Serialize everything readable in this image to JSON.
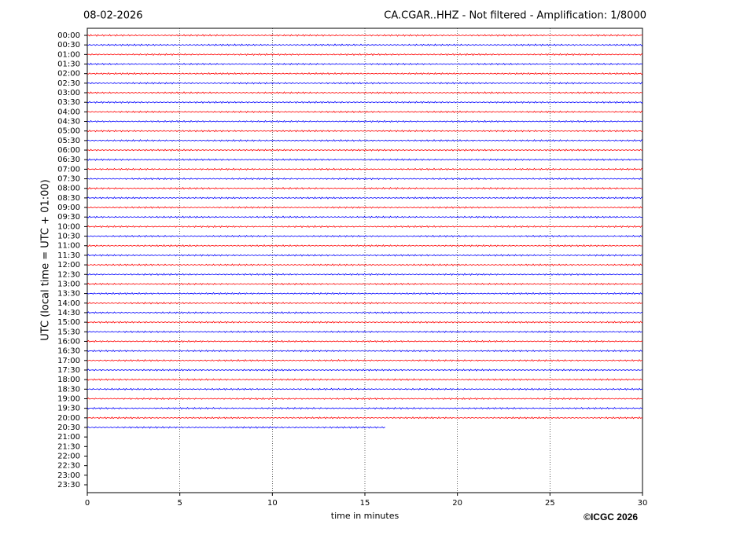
{
  "chart_data": {
    "type": "helicorder",
    "date": "08-02-2026",
    "title": "CA.CGAR..HHZ - Not filtered - Amplification: 1/8000",
    "ylabel": "UTC (local time = UTC + 01:00)",
    "xlabel": "time in minutes",
    "copyright": "©ICGC 2026",
    "xlim": [
      0,
      30
    ],
    "xticks": [
      0,
      5,
      10,
      15,
      20,
      25,
      30
    ],
    "grid": true,
    "colors": [
      "#ff0000",
      "#0000ff"
    ],
    "categories": [
      "00:00",
      "00:30",
      "01:00",
      "01:30",
      "02:00",
      "02:30",
      "03:00",
      "03:30",
      "04:00",
      "04:30",
      "05:00",
      "05:30",
      "06:00",
      "06:30",
      "07:00",
      "07:30",
      "08:00",
      "08:30",
      "09:00",
      "09:30",
      "10:00",
      "10:30",
      "11:00",
      "11:30",
      "12:00",
      "12:30",
      "13:00",
      "13:30",
      "14:00",
      "14:30",
      "15:00",
      "15:30",
      "16:00",
      "16:30",
      "17:00",
      "17:30",
      "18:00",
      "18:30",
      "19:00",
      "19:30",
      "20:00",
      "20:30",
      "21:00",
      "21:30",
      "22:00",
      "22:30",
      "23:00",
      "23:30"
    ],
    "values": [
      30,
      30,
      30,
      30,
      30,
      30,
      30,
      30,
      30,
      30,
      30,
      30,
      30,
      30,
      30,
      30,
      30,
      30,
      30,
      30,
      30,
      30,
      30,
      30,
      30,
      30,
      30,
      30,
      30,
      30,
      30,
      30,
      30,
      30,
      30,
      30,
      30,
      30,
      30,
      30,
      30,
      16.1,
      null,
      null,
      null,
      null,
      null,
      null
    ]
  }
}
